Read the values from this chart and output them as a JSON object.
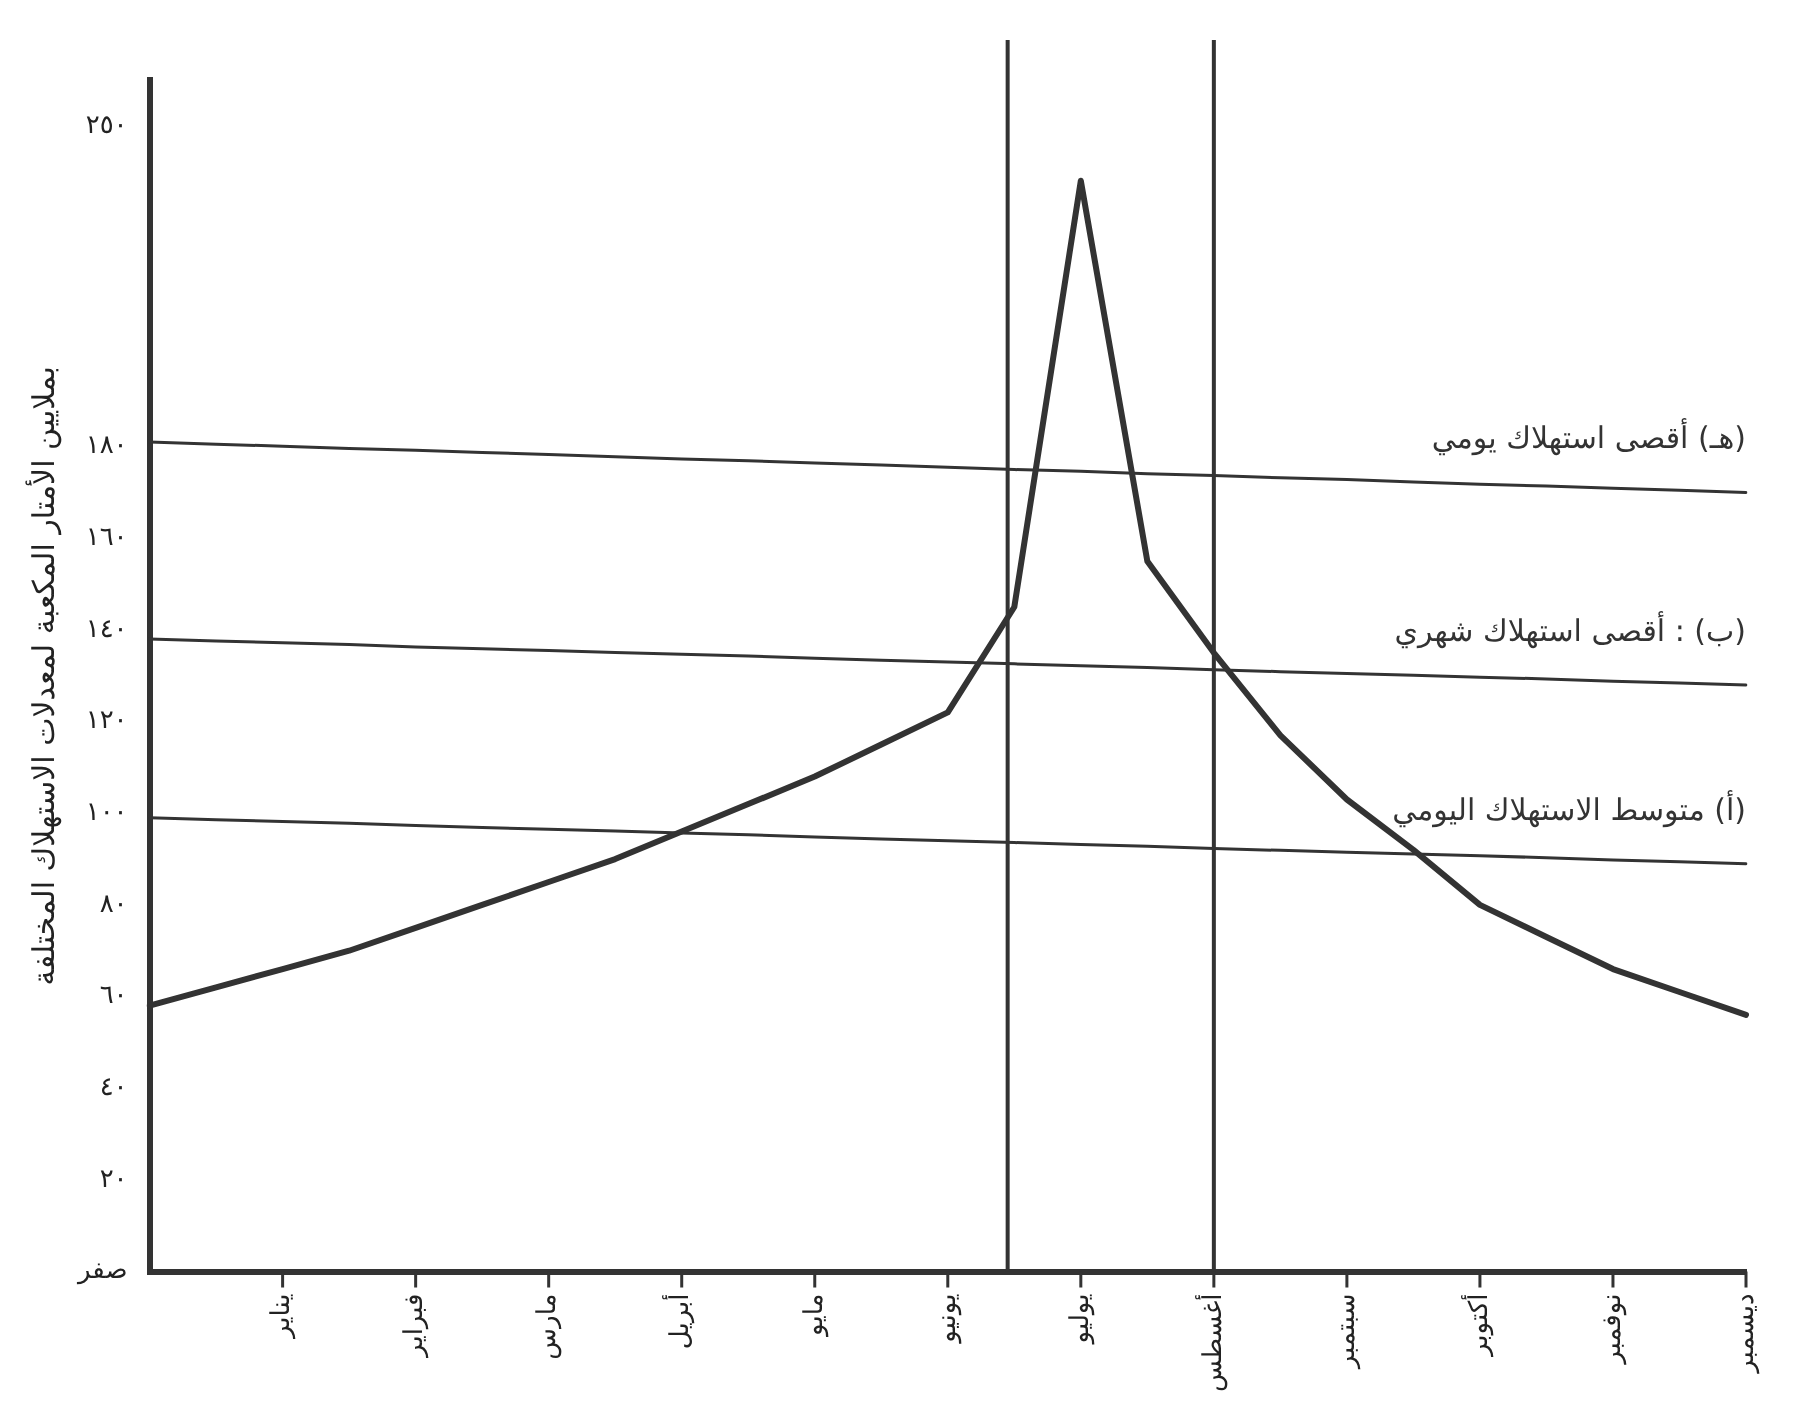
{
  "chart_data": {
    "type": "line",
    "ylabel": "بملايين الأمتار المكعبة لمعدلات الاستهلاك المختلفة",
    "categories": [
      null,
      null,
      "يناير",
      null,
      "فبراير",
      null,
      "مارس",
      null,
      "أبريل",
      null,
      "مايو",
      null,
      "يونيو",
      null,
      "يوليو",
      null,
      "أغسطس",
      null,
      "سبتمبر",
      null,
      "أكتوبر",
      null,
      "نوفمبر",
      null,
      "ديسمبر"
    ],
    "ylim": [
      0,
      260
    ],
    "yticks": [
      {
        "value": 0,
        "label": "صفر"
      },
      {
        "value": 20,
        "label": "٢٠"
      },
      {
        "value": 40,
        "label": "٤٠"
      },
      {
        "value": 60,
        "label": "٦٠"
      },
      {
        "value": 80,
        "label": "٨٠"
      },
      {
        "value": 100,
        "label": "١٠٠"
      },
      {
        "value": 120,
        "label": "١٢٠"
      },
      {
        "value": 140,
        "label": "١٤٠"
      },
      {
        "value": 160,
        "label": "١٦٠"
      },
      {
        "value": 180,
        "label": "١٨٠"
      },
      {
        "value": 250,
        "label": "٢٥٠"
      }
    ],
    "grid": false,
    "legend": false,
    "marker": "none",
    "line_style": "solid",
    "series": [
      {
        "color": "#333333",
        "values": [
          58,
          62,
          66,
          70,
          75,
          80,
          85,
          90,
          96,
          102,
          108,
          115,
          122,
          145,
          238,
          155,
          135,
          117,
          103,
          92,
          80,
          73,
          66,
          61,
          56
        ]
      },
      {
        "name": "(هـ) أقصى استهلاك يومي",
        "color": "#333333",
        "values": [
          181,
          180.5,
          180.1,
          179.6,
          179.2,
          178.7,
          178.3,
          177.8,
          177.3,
          176.9,
          176.4,
          176,
          175.5,
          175,
          174.6,
          174.1,
          173.7,
          173.2,
          172.8,
          172.3,
          171.8,
          171.4,
          170.9,
          170.5,
          170
        ]
      },
      {
        "name": "(ب) : أقصى استهلاك شهري",
        "color": "#333333",
        "values": [
          138,
          137.6,
          137.2,
          136.8,
          136.3,
          135.9,
          135.5,
          135.1,
          134.7,
          134.3,
          133.8,
          133.4,
          133,
          132.6,
          132.2,
          131.8,
          131.3,
          130.9,
          130.5,
          130.1,
          129.7,
          129.3,
          128.8,
          128.4,
          128
        ]
      },
      {
        "name": "(أ) متوسط الاستهلاك اليومي",
        "color": "#333333",
        "values": [
          99,
          98.6,
          98.2,
          97.8,
          97.3,
          96.9,
          96.5,
          96.1,
          95.7,
          95.3,
          94.8,
          94.4,
          94,
          93.6,
          93.2,
          92.8,
          92.3,
          91.9,
          91.5,
          91.1,
          90.7,
          90.3,
          89.8,
          89.4,
          89
        ]
      }
    ],
    "ref_lines": [
      {
        "axis": "x",
        "value": "أغسطس",
        "color": "#333333"
      }
    ]
  }
}
